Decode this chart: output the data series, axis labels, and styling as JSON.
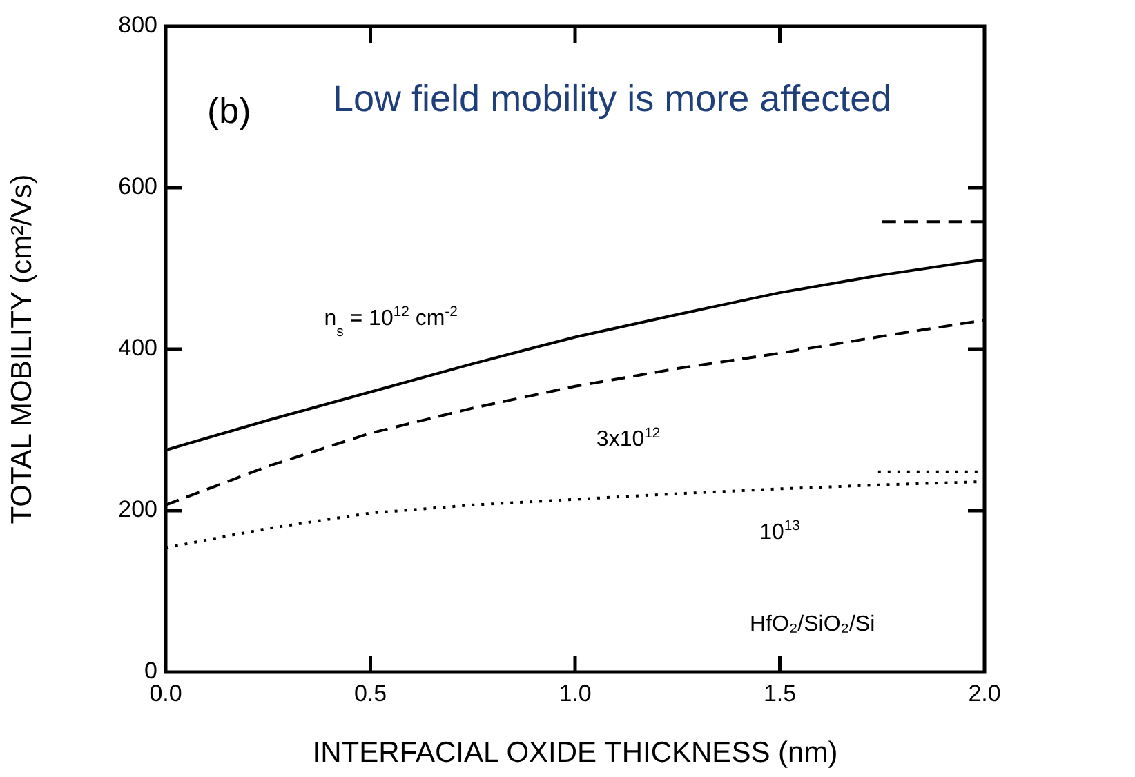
{
  "chart_data": {
    "type": "line",
    "xlabel": "INTERFACIAL OXIDE THICKNESS (nm)",
    "ylabel": "TOTAL MOBILITY (cm²/Vs)",
    "xlim": [
      0,
      2
    ],
    "xticks": [
      {
        "value": 0,
        "label": "0.0"
      },
      0.5,
      {
        "value": 1,
        "label": "1.0"
      },
      1.5,
      {
        "value": 2,
        "label": "2.0"
      }
    ],
    "ylim": [
      0,
      800
    ],
    "yticks": [
      0,
      200,
      400,
      600,
      800
    ],
    "grid": false,
    "legend": false,
    "marker": "none",
    "series": [
      {
        "color": "#000000",
        "line_style": "solid",
        "x": [
          0,
          0.25,
          0.5,
          0.75,
          1,
          1.25,
          1.5,
          1.75,
          2
        ],
        "values": [
          275,
          312,
          347,
          382,
          415,
          443,
          470,
          492,
          511
        ]
      },
      {
        "color": "#000000",
        "line_style": "dashed",
        "x": [
          0,
          0.25,
          0.5,
          0.75,
          1,
          1.25,
          1.5,
          1.75,
          2
        ],
        "values": [
          207,
          255,
          296,
          327,
          354,
          376,
          395,
          416,
          436
        ]
      },
      {
        "color": "#000000",
        "line_style": "dotted",
        "x": [
          0,
          0.25,
          0.5,
          0.75,
          1,
          1.25,
          1.5,
          1.75,
          2
        ],
        "values": [
          154,
          178,
          197,
          207,
          214,
          221,
          227,
          232,
          236
        ]
      },
      {
        "color": "#000000",
        "line_style": "dashed",
        "x": [
          1.75,
          2
        ],
        "values": [
          558,
          558
        ]
      },
      {
        "color": "#000000",
        "line_style": "dotted",
        "x": [
          1.74,
          2
        ],
        "values": [
          248,
          248
        ]
      }
    ],
    "annotations": [
      "(b)",
      "Low field mobility is more affected",
      "n$_{s}$ = 10$^{12}$ cm$^{-2}$",
      "3x10$^{12}$",
      "10$^{13}$",
      "HfO₂/SiO₂/Si"
    ]
  }
}
